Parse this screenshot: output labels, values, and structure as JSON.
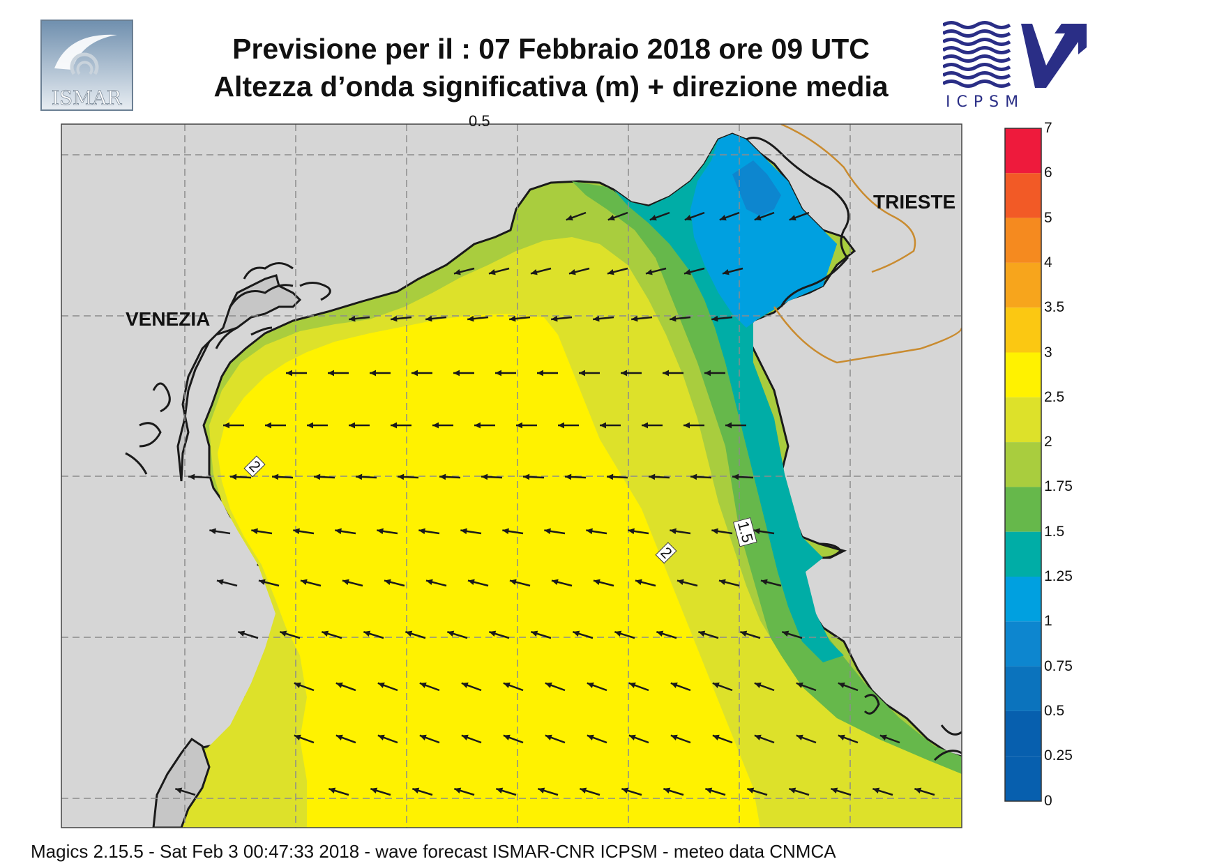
{
  "header": {
    "title_line1": "Previsione per il  :  07  Febbraio 2018   ore 09 UTC",
    "title_line2": "Altezza d’onda significativa (m) + direzione media"
  },
  "logos": {
    "left": {
      "text": "ISMAR",
      "icon": "ismar-logo-icon"
    },
    "right": {
      "text": "ICPSM",
      "icon": "icpsm-logo-icon"
    }
  },
  "map": {
    "place_labels": {
      "venezia": "VENEZIA",
      "trieste": "TRIESTE"
    },
    "contour_labels": [
      "2",
      "2",
      "1.5"
    ],
    "top_edge_label": "0.5",
    "colors": {
      "land": "#d6d6d6",
      "coast": "#1a1a1a",
      "border": "#c98b2f",
      "grid": "#8c8c8c",
      "arrow": "#1a1a1a"
    },
    "wave_direction": "toward west (from east)"
  },
  "legend": {
    "levels": [
      {
        "label": "7",
        "color": "#f0107a"
      },
      {
        "label": "6",
        "color": "#ee1a3c"
      },
      {
        "label": "5",
        "color": "#f25a26"
      },
      {
        "label": "4",
        "color": "#f58a1f"
      },
      {
        "label": "3.5",
        "color": "#f7a51c"
      },
      {
        "label": "3",
        "color": "#fbc812"
      },
      {
        "label": "2.5",
        "color": "#fff200"
      },
      {
        "label": "2",
        "color": "#dde12a"
      },
      {
        "label": "1.75",
        "color": "#a9cd3e"
      },
      {
        "label": "1.5",
        "color": "#66b84b"
      },
      {
        "label": "1.25",
        "color": "#00ada6"
      },
      {
        "label": "1",
        "color": "#00a0e0"
      },
      {
        "label": "0.75",
        "color": "#0d86cf"
      },
      {
        "label": "0.5",
        "color": "#0b73bd"
      },
      {
        "label": "0.25",
        "color": "#075fae"
      },
      {
        "label": "0",
        "color": "#075fae"
      }
    ]
  },
  "footer": {
    "text": "Magics 2.15.5 - Sat Feb  3 00:47:33 2018 - wave forecast  ISMAR-CNR  ICPSM - meteo data    CNMCA"
  }
}
